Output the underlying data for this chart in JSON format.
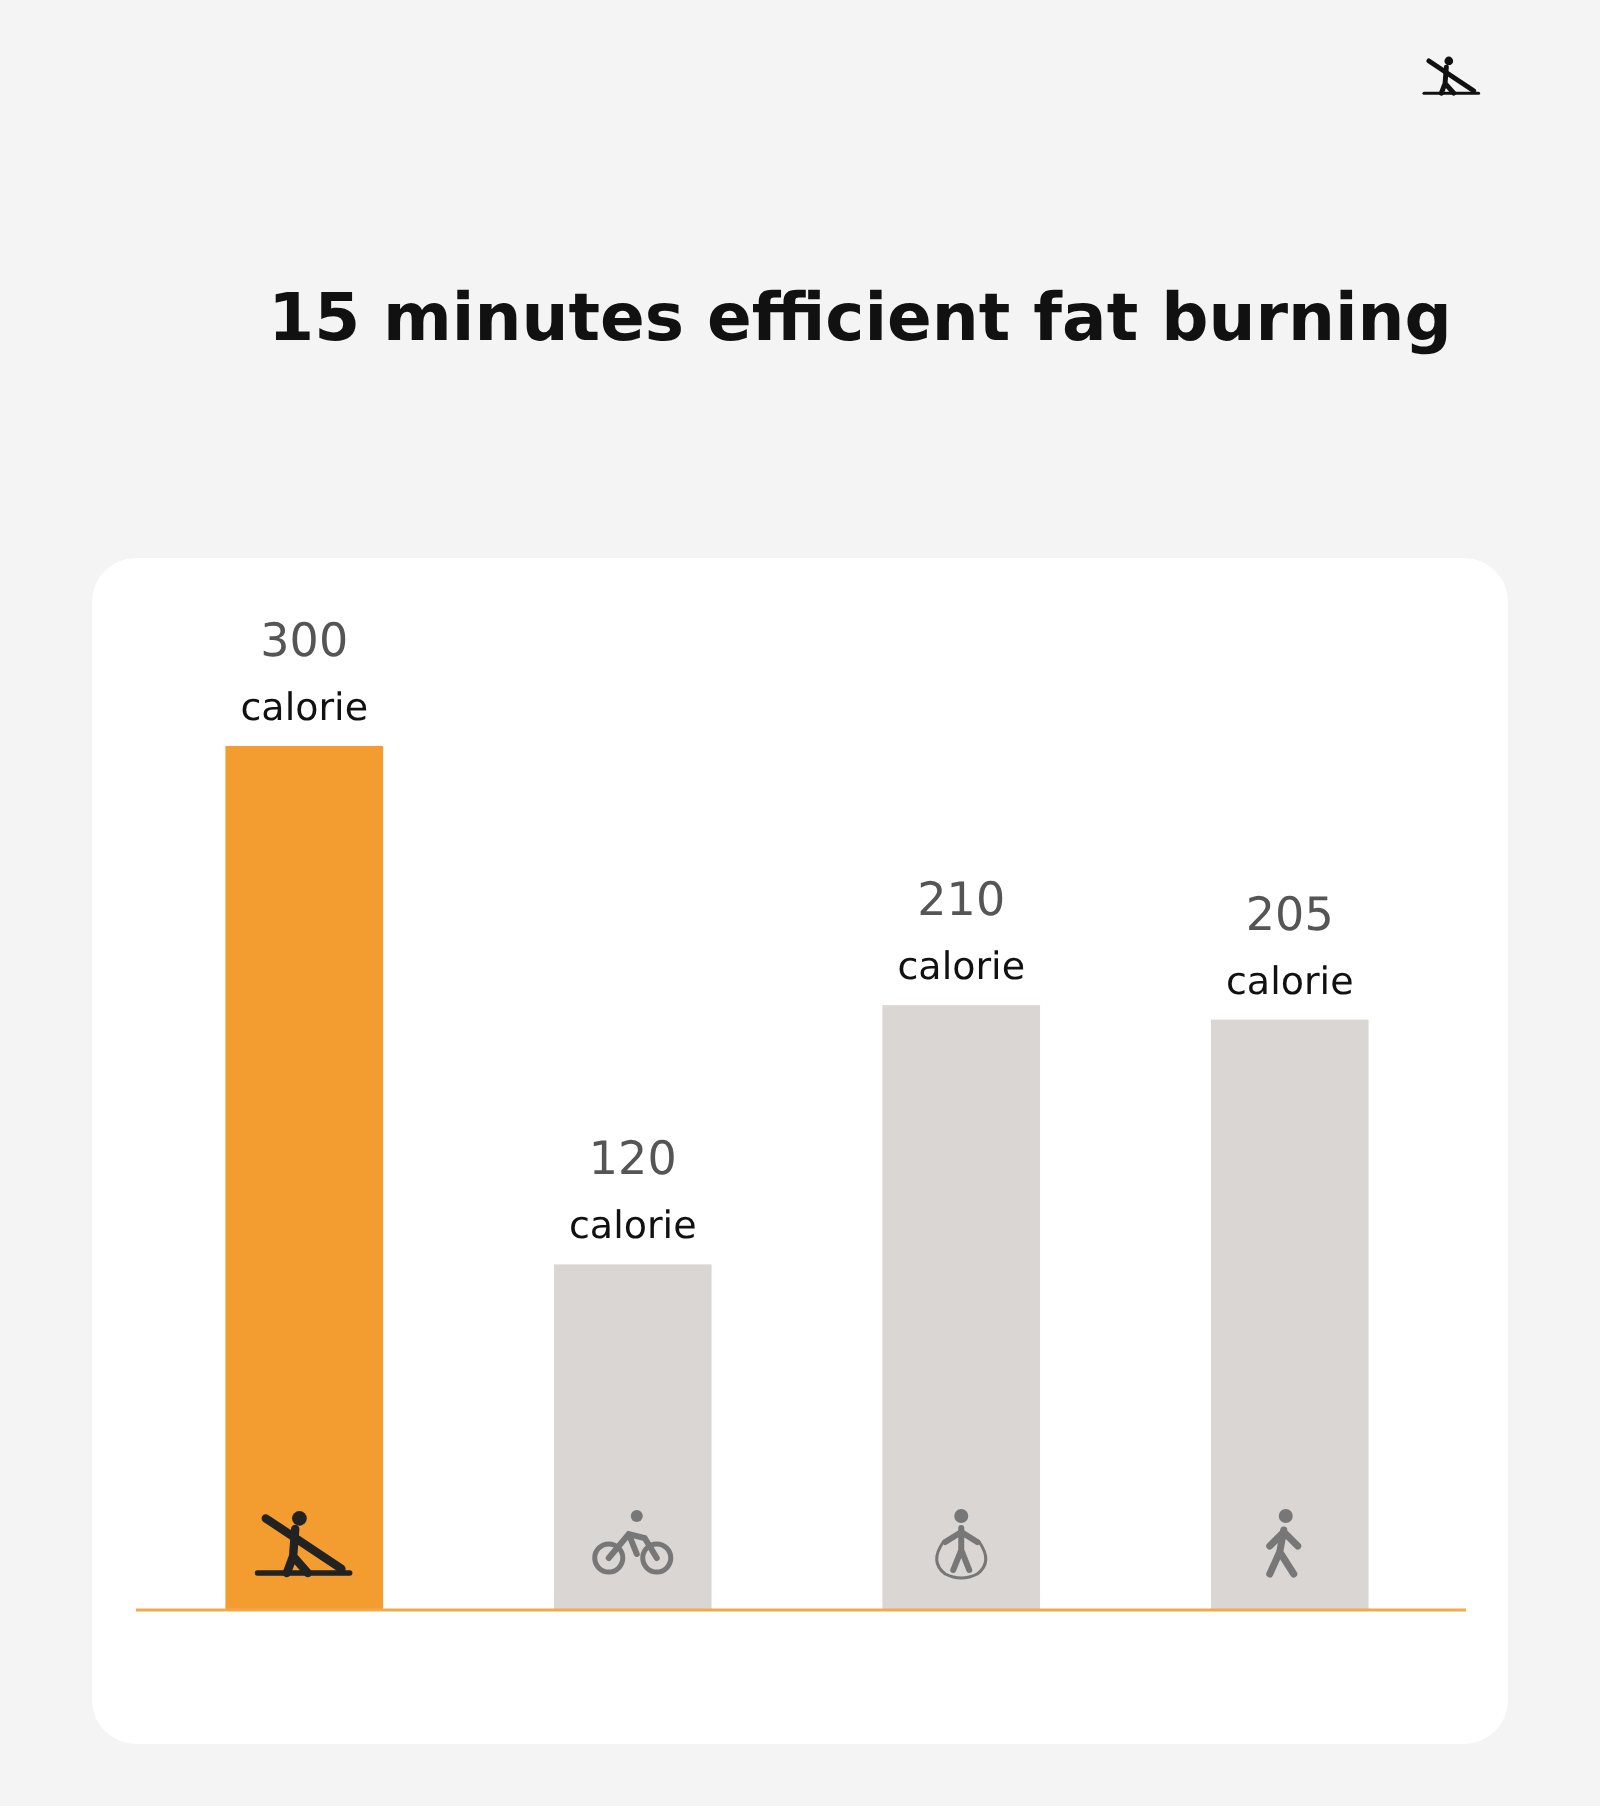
{
  "chart_data": {
    "type": "bar",
    "title": "15 minutes efficient fat burning",
    "categories": [
      null,
      null,
      null,
      null
    ],
    "values": [
      300,
      120,
      210,
      205
    ],
    "colors": [
      "#f39c2f",
      "#d9d6d3",
      "#d9d6d3",
      "#d9d6d3"
    ],
    "value_labels": [
      "300 calorie",
      "120 calorie",
      "210 calorie",
      "205 calorie"
    ]
  }
}
